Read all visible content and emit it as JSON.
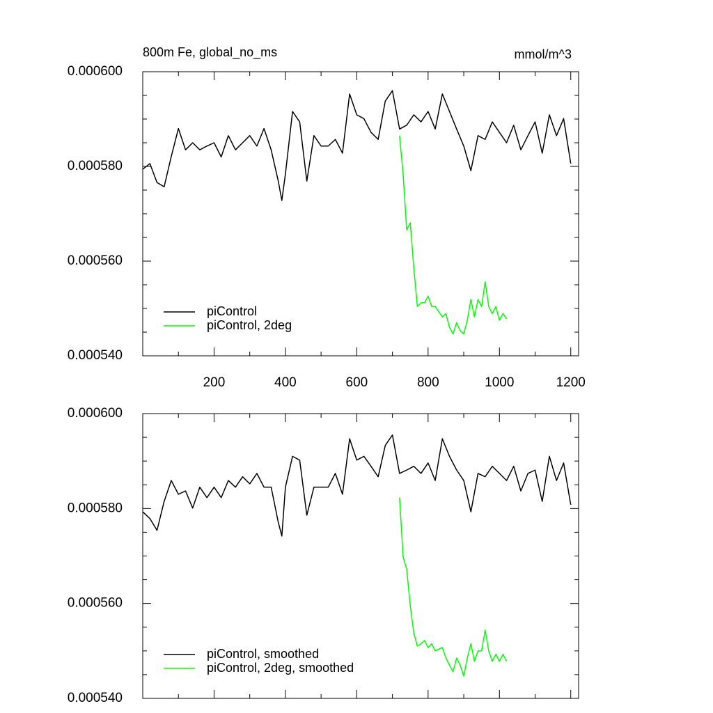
{
  "chart_data": [
    {
      "type": "line",
      "title": "800m Fe, global_no_ms",
      "units": "mmol/m^3",
      "xlim": [
        0,
        1222
      ],
      "xticks": [
        200,
        400,
        600,
        800,
        1000,
        1200
      ],
      "show_xtick_labels": true,
      "ylim": [
        0.00054,
        0.0006
      ],
      "yticks": [
        {
          "value": 0.00054,
          "label": "0.000540"
        },
        {
          "value": 0.00056,
          "label": "0.000560"
        },
        {
          "value": 0.00058,
          "label": "0.000580"
        },
        {
          "value": 0.0006,
          "label": "0.000600"
        }
      ],
      "legend": "lower left",
      "series": [
        {
          "name": "piControl",
          "color": "#000000",
          "x": [
            0,
            20,
            40,
            60,
            80,
            100,
            120,
            140,
            160,
            180,
            200,
            220,
            240,
            260,
            280,
            300,
            320,
            340,
            360,
            380,
            390,
            400,
            420,
            440,
            460,
            480,
            500,
            520,
            540,
            560,
            580,
            600,
            620,
            640,
            660,
            680,
            700,
            720,
            740,
            760,
            780,
            800,
            820,
            840,
            860,
            880,
            900,
            920,
            940,
            960,
            980,
            1000,
            1020,
            1040,
            1060,
            1080,
            1100,
            1120,
            1140,
            1160,
            1180,
            1200
          ],
          "values": [
            0.0005794,
            0.0005806,
            0.0005766,
            0.0005757,
            0.0005821,
            0.000588,
            0.0005835,
            0.000585,
            0.0005835,
            0.0005843,
            0.000585,
            0.000582,
            0.0005865,
            0.0005835,
            0.000585,
            0.0005865,
            0.0005843,
            0.000588,
            0.0005835,
            0.0005769,
            0.0005728,
            0.0005784,
            0.0005916,
            0.0005894,
            0.0005769,
            0.0005865,
            0.0005843,
            0.0005843,
            0.0005857,
            0.0005828,
            0.0005953,
            0.0005909,
            0.0005901,
            0.0005872,
            0.0005857,
            0.0005938,
            0.000596,
            0.0005879,
            0.0005887,
            0.0005909,
            0.0005894,
            0.0005916,
            0.0005879,
            0.0005953,
            0.0005916,
            0.0005879,
            0.0005843,
            0.0005791,
            0.0005865,
            0.0005857,
            0.0005894,
            0.0005872,
            0.000585,
            0.0005887,
            0.0005835,
            0.0005865,
            0.0005894,
            0.0005828,
            0.0005909,
            0.0005865,
            0.0005901,
            0.0005806
          ]
        },
        {
          "name": "piControl, 2deg",
          "color": "#00ff00",
          "x": [
            720,
            730,
            740,
            750,
            760,
            770,
            780,
            790,
            800,
            810,
            820,
            840,
            850,
            860,
            870,
            880,
            890,
            900,
            910,
            920,
            930,
            940,
            950,
            960,
            970,
            980,
            990,
            1000,
            1010,
            1020
          ],
          "values": [
            0.0005865,
            0.0005784,
            0.0005666,
            0.0005681,
            0.0005585,
            0.0005504,
            0.0005512,
            0.0005512,
            0.0005526,
            0.0005504,
            0.0005504,
            0.0005482,
            0.0005489,
            0.000546,
            0.0005446,
            0.000547,
            0.0005453,
            0.0005446,
            0.0005475,
            0.0005519,
            0.0005482,
            0.0005519,
            0.0005504,
            0.0005556,
            0.0005504,
            0.0005489,
            0.0005504,
            0.0005475,
            0.0005489,
            0.0005478
          ]
        }
      ]
    },
    {
      "type": "line",
      "xlim": [
        0,
        1222
      ],
      "xticks": [
        200,
        400,
        600,
        800,
        1000,
        1200
      ],
      "show_xtick_labels": false,
      "ylim": [
        0.00054,
        0.0006
      ],
      "yticks": [
        {
          "value": 0.00054,
          "label": "0.000540"
        },
        {
          "value": 0.00056,
          "label": "0.000560"
        },
        {
          "value": 0.00058,
          "label": "0.000580"
        },
        {
          "value": 0.0006,
          "label": "0.000600"
        }
      ],
      "legend": "lower left",
      "series": [
        {
          "name": "piControl, smoothed",
          "color": "#000000",
          "x": [
            0,
            20,
            40,
            60,
            80,
            100,
            120,
            140,
            160,
            180,
            200,
            220,
            240,
            260,
            280,
            300,
            320,
            340,
            360,
            380,
            390,
            400,
            420,
            440,
            460,
            480,
            500,
            520,
            540,
            560,
            580,
            600,
            620,
            640,
            660,
            680,
            700,
            720,
            740,
            760,
            780,
            800,
            820,
            840,
            860,
            880,
            900,
            920,
            940,
            960,
            980,
            1000,
            1020,
            1040,
            1060,
            1080,
            1100,
            1120,
            1140,
            1160,
            1180,
            1200
          ],
          "values": [
            0.0005793,
            0.0005779,
            0.0005754,
            0.0005815,
            0.0005859,
            0.000583,
            0.0005837,
            0.0005801,
            0.0005845,
            0.0005823,
            0.0005845,
            0.0005823,
            0.0005859,
            0.0005845,
            0.0005867,
            0.0005852,
            0.0005874,
            0.0005845,
            0.0005845,
            0.0005771,
            0.0005742,
            0.0005845,
            0.000591,
            0.0005902,
            0.0005786,
            0.0005845,
            0.0005845,
            0.0005845,
            0.0005874,
            0.000583,
            0.0005947,
            0.0005902,
            0.000591,
            0.0005889,
            0.0005867,
            0.0005933,
            0.0005955,
            0.0005874,
            0.0005881,
            0.0005889,
            0.0005874,
            0.0005896,
            0.0005859,
            0.0005947,
            0.000591,
            0.0005881,
            0.0005859,
            0.0005793,
            0.0005874,
            0.0005867,
            0.0005889,
            0.0005874,
            0.0005859,
            0.0005889,
            0.0005837,
            0.0005874,
            0.0005881,
            0.0005815,
            0.000591,
            0.0005859,
            0.0005896,
            0.0005808
          ]
        },
        {
          "name": "piControl, 2deg, smoothed",
          "color": "#00ff00",
          "x": [
            720,
            730,
            740,
            750,
            760,
            770,
            780,
            790,
            800,
            810,
            820,
            840,
            850,
            860,
            870,
            880,
            890,
            900,
            910,
            920,
            930,
            940,
            950,
            960,
            970,
            980,
            990,
            1000,
            1010,
            1020
          ],
          "values": [
            0.0005823,
            0.0005698,
            0.0005672,
            0.0005595,
            0.0005537,
            0.000551,
            0.0005515,
            0.0005522,
            0.0005507,
            0.0005515,
            0.00055,
            0.0005507,
            0.0005485,
            0.000547,
            0.0005456,
            0.0005485,
            0.000547,
            0.0005447,
            0.0005485,
            0.0005515,
            0.0005478,
            0.00055,
            0.00055,
            0.0005544,
            0.00055,
            0.0005478,
            0.0005493,
            0.0005478,
            0.0005493,
            0.0005478
          ]
        }
      ]
    }
  ]
}
